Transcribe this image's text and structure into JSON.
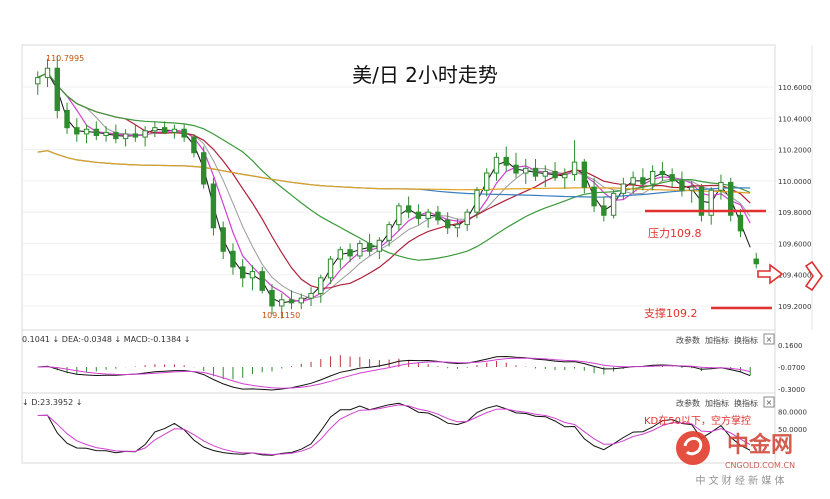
{
  "title": "美/日 2小时走势",
  "colors": {
    "up": "#2e8b2e",
    "down": "#2e8b2e",
    "ma_red": "#b0203a",
    "ma_magenta": "#d040d0",
    "ma_green": "#3a9a3a",
    "ma_blue": "#3a80c0",
    "ma_orange": "#e0a020",
    "ma_black": "#111111",
    "ma_grey": "#9a9a9a",
    "annot_red": "#e03030",
    "logo_red": "#e23c2c"
  },
  "price_panel": {
    "ylabels": [
      "110.6000",
      "110.4000",
      "110.2000",
      "110.0000",
      "109.8000",
      "109.6000",
      "109.4000",
      "109.2000"
    ],
    "high_label": "110.7995",
    "low_label": "109.1150",
    "resistance_label": "压力109.8",
    "support_label": "支撑109.2"
  },
  "macd_panel": {
    "header": "0.1041 ↓ DEA:-0.0348 ↓ MACD:-0.1384 ↓",
    "ylabels": [
      "0.1600",
      "-0.0700",
      "-0.3000"
    ],
    "buttons": [
      "改参数",
      "加指标",
      "换指标"
    ],
    "close": "×"
  },
  "kd_panel": {
    "header": "↓ D:23.3952 ↓",
    "ylabels": [
      "80.0000",
      "50.0000"
    ],
    "buttons": [
      "改参数",
      "加指标",
      "换指标"
    ],
    "close": "×",
    "annotation": "KD在50以下，空方掌控"
  },
  "watermark": {
    "brand": "中金网",
    "domain": "CNGOLD.COM.CN",
    "slogan": "中 文 财 经 新 媒 体"
  },
  "chart_data": {
    "type": "candlestick",
    "title": "美/日 2小时走势",
    "ylim": [
      109.1,
      110.8
    ],
    "y_ticks": [
      110.6,
      110.4,
      110.2,
      110.0,
      109.8,
      109.6,
      109.4,
      109.2
    ],
    "annotations": [
      {
        "text": "110.7995",
        "value": 110.7995,
        "kind": "high"
      },
      {
        "text": "109.1150",
        "value": 109.115,
        "kind": "low"
      },
      {
        "text": "压力109.8",
        "value": 109.8,
        "kind": "resistance"
      },
      {
        "text": "支撑109.2",
        "value": 109.2,
        "kind": "support"
      }
    ],
    "candles": [
      [
        110.62,
        110.7,
        110.55,
        110.66
      ],
      [
        110.66,
        110.78,
        110.6,
        110.72
      ],
      [
        110.72,
        110.8,
        110.4,
        110.45
      ],
      [
        110.45,
        110.5,
        110.3,
        110.34
      ],
      [
        110.34,
        110.4,
        110.25,
        110.3
      ],
      [
        110.3,
        110.36,
        110.24,
        110.33
      ],
      [
        110.33,
        110.38,
        110.26,
        110.29
      ],
      [
        110.29,
        110.35,
        110.25,
        110.31
      ],
      [
        110.31,
        110.36,
        110.24,
        110.27
      ],
      [
        110.27,
        110.33,
        110.22,
        110.3
      ],
      [
        110.3,
        110.36,
        110.25,
        110.28
      ],
      [
        110.28,
        110.35,
        110.22,
        110.32
      ],
      [
        110.32,
        110.38,
        110.28,
        110.34
      ],
      [
        110.34,
        110.38,
        110.3,
        110.31
      ],
      [
        110.31,
        110.36,
        110.27,
        110.33
      ],
      [
        110.33,
        110.36,
        110.25,
        110.28
      ],
      [
        110.28,
        110.3,
        110.15,
        110.18
      ],
      [
        110.18,
        110.22,
        109.95,
        109.98
      ],
      [
        109.98,
        110.02,
        109.65,
        109.7
      ],
      [
        109.7,
        109.74,
        109.5,
        109.55
      ],
      [
        109.55,
        109.6,
        109.4,
        109.45
      ],
      [
        109.45,
        109.5,
        109.32,
        109.38
      ],
      [
        109.38,
        109.46,
        109.3,
        109.42
      ],
      [
        109.42,
        109.45,
        109.28,
        109.3
      ],
      [
        109.3,
        109.34,
        109.15,
        109.2
      ],
      [
        109.2,
        109.28,
        109.12,
        109.24
      ],
      [
        109.24,
        109.3,
        109.18,
        109.22
      ],
      [
        109.22,
        109.28,
        109.18,
        109.25
      ],
      [
        109.25,
        109.32,
        109.2,
        109.28
      ],
      [
        109.28,
        109.4,
        109.22,
        109.38
      ],
      [
        109.38,
        109.52,
        109.34,
        109.5
      ],
      [
        109.5,
        109.58,
        109.44,
        109.56
      ],
      [
        109.56,
        109.6,
        109.48,
        109.52
      ],
      [
        109.52,
        109.62,
        109.5,
        109.6
      ],
      [
        109.6,
        109.66,
        109.52,
        109.55
      ],
      [
        109.55,
        109.64,
        109.5,
        109.62
      ],
      [
        109.62,
        109.74,
        109.58,
        109.72
      ],
      [
        109.72,
        109.86,
        109.68,
        109.84
      ],
      [
        109.84,
        109.9,
        109.76,
        109.8
      ],
      [
        109.8,
        109.85,
        109.72,
        109.76
      ],
      [
        109.76,
        109.82,
        109.7,
        109.8
      ],
      [
        109.8,
        109.84,
        109.72,
        109.75
      ],
      [
        109.75,
        109.8,
        109.66,
        109.7
      ],
      [
        109.7,
        109.76,
        109.64,
        109.72
      ],
      [
        109.72,
        109.82,
        109.68,
        109.8
      ],
      [
        109.8,
        109.96,
        109.76,
        109.94
      ],
      [
        109.94,
        110.08,
        109.9,
        110.05
      ],
      [
        110.05,
        110.18,
        110.0,
        110.15
      ],
      [
        110.15,
        110.22,
        110.06,
        110.1
      ],
      [
        110.1,
        110.18,
        110.02,
        110.05
      ],
      [
        110.05,
        110.14,
        109.98,
        110.08
      ],
      [
        110.08,
        110.14,
        110.0,
        110.03
      ],
      [
        110.03,
        110.1,
        109.96,
        110.06
      ],
      [
        110.06,
        110.12,
        110.0,
        110.02
      ],
      [
        110.02,
        110.08,
        109.95,
        110.04
      ],
      [
        110.04,
        110.26,
        110.0,
        110.12
      ],
      [
        110.12,
        110.14,
        109.92,
        109.96
      ],
      [
        109.96,
        110.02,
        109.8,
        109.84
      ],
      [
        109.84,
        109.9,
        109.74,
        109.78
      ],
      [
        109.78,
        109.94,
        109.76,
        109.92
      ],
      [
        109.92,
        110.02,
        109.88,
        109.98
      ],
      [
        109.98,
        110.06,
        109.92,
        110.02
      ],
      [
        110.02,
        110.08,
        109.94,
        109.98
      ],
      [
        109.98,
        110.1,
        109.94,
        110.06
      ],
      [
        110.06,
        110.12,
        110.0,
        110.04
      ],
      [
        110.04,
        110.08,
        109.96,
        110.0
      ],
      [
        110.0,
        110.06,
        109.9,
        109.94
      ],
      [
        109.94,
        110.0,
        109.86,
        109.96
      ],
      [
        109.96,
        109.98,
        109.74,
        109.78
      ],
      [
        109.78,
        109.96,
        109.72,
        109.94
      ],
      [
        109.94,
        110.04,
        109.88,
        109.99
      ],
      [
        109.99,
        110.02,
        109.74,
        109.78
      ],
      [
        109.78,
        109.82,
        109.64,
        109.68
      ],
      [
        109.5,
        109.54,
        109.44,
        109.47
      ]
    ]
  }
}
